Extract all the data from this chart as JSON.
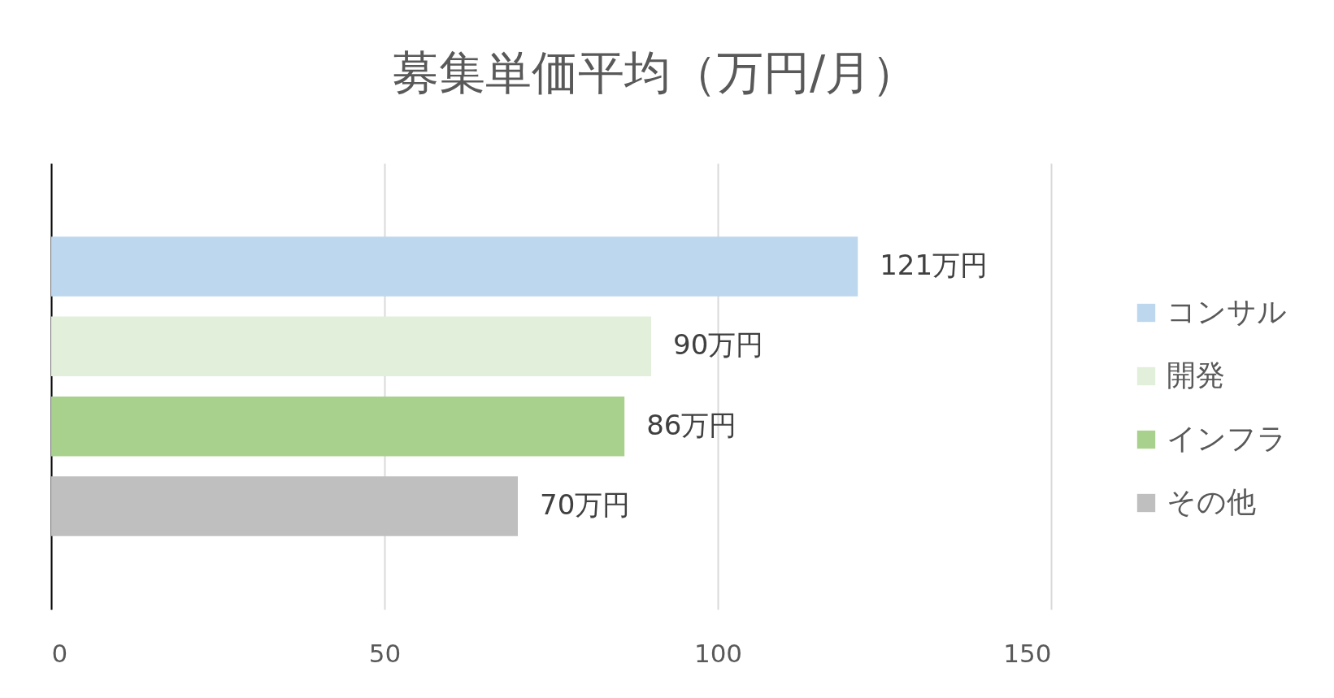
{
  "chart_data": {
    "type": "bar",
    "title": "募集単価平均（万円/月）",
    "orientation": "horizontal",
    "categories": [
      null
    ],
    "series": [
      {
        "name": "コンサル",
        "color": "#bdd7ee",
        "values": [
          121
        ],
        "value_labels": [
          "121万円"
        ]
      },
      {
        "name": "開発",
        "color": "#e2efda",
        "values": [
          90
        ],
        "value_labels": [
          "90万円"
        ]
      },
      {
        "name": "インフラ",
        "color": "#a9d18e",
        "values": [
          86
        ],
        "value_labels": [
          "86万円"
        ]
      },
      {
        "name": "その他",
        "color": "#bfbfbf",
        "values": [
          70
        ],
        "value_labels": [
          "70万円"
        ]
      }
    ],
    "xlim": [
      0,
      150
    ],
    "xticks": [
      0,
      50,
      100,
      150
    ],
    "grid": "x",
    "legend": "right",
    "tick_labels": "x"
  }
}
